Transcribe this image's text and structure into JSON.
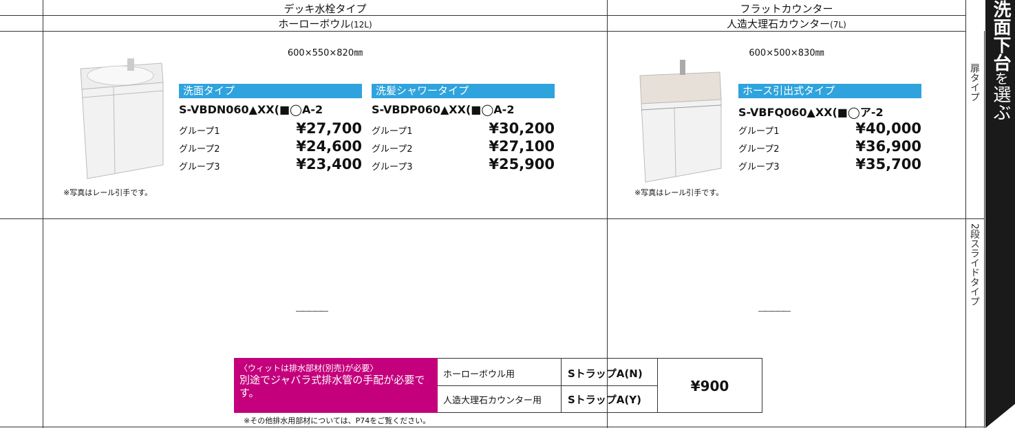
{
  "header": {
    "left_group": "デッキ水栓タイプ",
    "left_sub": "ホーローボウル",
    "left_sub_unit": "(12L)",
    "right_group": "フラットカウンター",
    "right_sub": "人造大理石カウンター",
    "right_sub_unit": "(7L)"
  },
  "row_labels": [
    "扉タイプ",
    "2段スライドタイプ"
  ],
  "side_tab": {
    "bold": "洗面下台",
    "light": "を",
    "tail": "選ぶ"
  },
  "products": [
    {
      "size": "600×550×820㎜",
      "note": "※写真はレール引手です。",
      "variants": [
        {
          "label": "洗面タイプ",
          "model": "S-VBDN060▲XX(■◯A-2",
          "prices": [
            {
              "group": "グループ1",
              "price": "¥27,700"
            },
            {
              "group": "グループ2",
              "price": "¥24,600"
            },
            {
              "group": "グループ3",
              "price": "¥23,400"
            }
          ]
        },
        {
          "label": "洗髪シャワータイプ",
          "model": "S-VBDP060▲XX(■◯A-2",
          "prices": [
            {
              "group": "グループ1",
              "price": "¥30,200"
            },
            {
              "group": "グループ2",
              "price": "¥27,100"
            },
            {
              "group": "グループ3",
              "price": "¥25,900"
            }
          ]
        }
      ]
    },
    {
      "size": "600×500×830㎜",
      "note": "※写真はレール引手です。",
      "variants": [
        {
          "label": "ホース引出式タイプ",
          "model": "S-VBFQ060▲XX(■◯ア-2",
          "prices": [
            {
              "group": "グループ1",
              "price": "¥40,000"
            },
            {
              "group": "グループ2",
              "price": "¥36,900"
            },
            {
              "group": "グループ3",
              "price": "¥35,700"
            }
          ]
        }
      ]
    }
  ],
  "slide_row": [
    "―――――",
    "―――――"
  ],
  "drain": {
    "notice_head": "〈ウィットは排水部材(別売)が必要〉",
    "notice_body": "別途でジャバラ式排水管の手配が必要です。",
    "items": [
      {
        "use": "ホーローボウル用",
        "part": "SトラップA(N)"
      },
      {
        "use": "人造大理石カウンター用",
        "part": "SトラップA(Y)"
      }
    ],
    "price": "¥900",
    "footnote": "※その他排水用部材については、P74をご覧ください。"
  }
}
